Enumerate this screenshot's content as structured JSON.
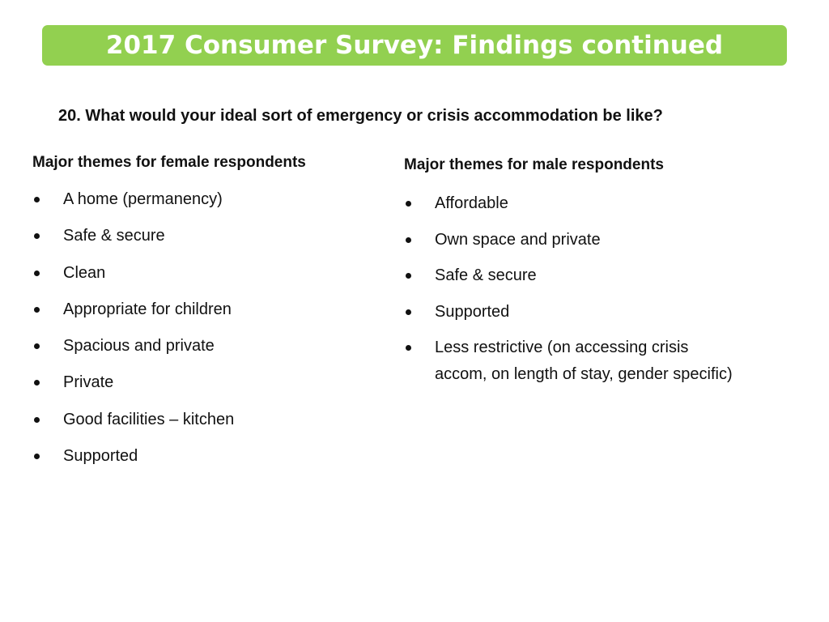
{
  "title": "2017 Consumer Survey: Findings continued",
  "question": "20. What would your ideal sort of emergency or crisis accommodation be like?",
  "female": {
    "heading": "Major themes for female respondents",
    "items": [
      "A home (permanency)",
      "Safe & secure",
      "Clean",
      "Appropriate for children",
      "Spacious and private",
      "Private",
      "Good facilities – kitchen",
      "Supported"
    ]
  },
  "male": {
    "heading": "Major themes for male respondents",
    "items": [
      "Affordable",
      "Own space and private",
      "Safe & secure",
      "Supported",
      "Less restrictive (on accessing crisis accom, on length of stay, gender specific)"
    ]
  },
  "colors": {
    "title_bar": "#92d050",
    "title_text": "#ffffff",
    "body_text": "#111111"
  },
  "icons": {
    "bullet": "bullet-dot-icon"
  }
}
